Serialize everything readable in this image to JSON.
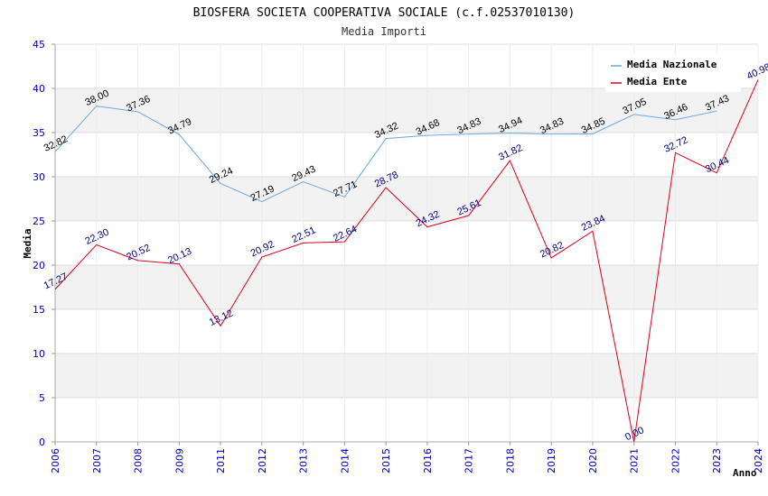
{
  "chart_data": {
    "type": "line",
    "title": "BIOSFERA SOCIETA COOPERATIVA SOCIALE (c.f.02537010130)",
    "subtitle": "Media Importi",
    "xlabel": "Anno",
    "ylabel": "Media",
    "ylim": [
      0,
      45
    ],
    "yticks": [
      "0",
      "5",
      "10",
      "15",
      "20",
      "25",
      "30",
      "35",
      "40",
      "45"
    ],
    "categories": [
      "2006",
      "2007",
      "2008",
      "2009",
      "2011",
      "2012",
      "2013",
      "2014",
      "2015",
      "2016",
      "2017",
      "2018",
      "2019",
      "2020",
      "2021",
      "2022",
      "2023",
      "2024"
    ],
    "series": [
      {
        "name": "Media Nazionale",
        "color": "#6aa8e6",
        "label_color": "#000000",
        "values": [
          32.82,
          38.0,
          37.36,
          34.79,
          29.24,
          27.19,
          29.43,
          27.71,
          34.32,
          34.68,
          34.83,
          34.94,
          34.83,
          34.85,
          37.05,
          36.46,
          37.43,
          null
        ],
        "labels": [
          "32.82",
          "38.00",
          "37.36",
          "34.79",
          "29.24",
          "27.19",
          "29.43",
          "27.71",
          "34.32",
          "34.68",
          "34.83",
          "34.94",
          "34.83",
          "34.85",
          "37.05",
          "36.46",
          "37.43",
          ""
        ]
      },
      {
        "name": "Media Ente",
        "color": "#e0001a",
        "label_color": "#000080",
        "values": [
          17.27,
          22.3,
          20.52,
          20.13,
          13.12,
          20.92,
          22.51,
          22.64,
          28.78,
          24.32,
          25.61,
          31.82,
          20.82,
          23.84,
          0.0,
          32.72,
          30.44,
          40.98
        ],
        "labels": [
          "17.27",
          "22.30",
          "20.52",
          "20.13",
          "13.12",
          "20.92",
          "22.51",
          "22.64",
          "28.78",
          "24.32",
          "25.61",
          "31.82",
          "20.82",
          "23.84",
          "0.00",
          "32.72",
          "30.44",
          "40.98"
        ]
      }
    ],
    "grid": true,
    "legend": "top-right",
    "axis_color": "#0000c0",
    "band_color": "#f2f2f2"
  }
}
